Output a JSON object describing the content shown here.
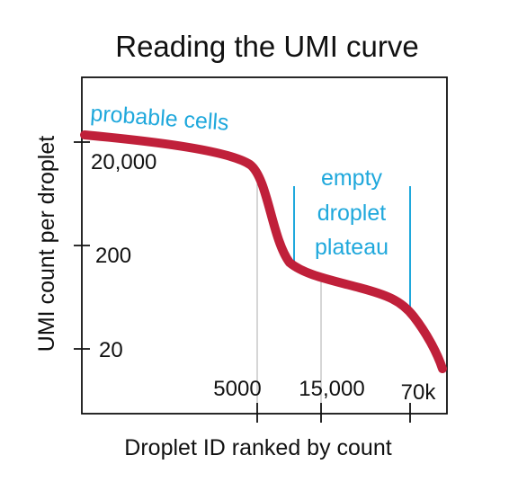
{
  "chart_data": {
    "type": "line",
    "title": "Reading the UMI curve",
    "xlabel": "Droplet ID ranked by count",
    "ylabel": "UMI count per droplet",
    "y_scale": "log",
    "x_ticks": [
      {
        "value": 5000,
        "label": "5000"
      },
      {
        "value": 15000,
        "label": "15,000"
      },
      {
        "value": 70000,
        "label": "70k"
      }
    ],
    "y_ticks": [
      {
        "value": 20,
        "label": "20"
      },
      {
        "value": 200,
        "label": "200"
      },
      {
        "value": 20000,
        "label": "20,000"
      }
    ],
    "series": [
      {
        "color": "#c0203a",
        "description_points": [
          {
            "x": 1,
            "y": 30000
          },
          {
            "x": 5000,
            "y": 15000
          },
          {
            "x": 8000,
            "y": 150
          },
          {
            "x": 15000,
            "y": 110
          },
          {
            "x": 40000,
            "y": 60
          },
          {
            "x": 70000,
            "y": 30
          },
          {
            "x": 100000,
            "y": 13
          }
        ]
      }
    ],
    "annotations": [
      {
        "text": "probable cells",
        "color": "#1fa8dc"
      },
      {
        "lines": [
          "empty",
          "droplet",
          "plateau"
        ],
        "color": "#1fa8dc"
      }
    ],
    "grid": false,
    "legend": "none"
  }
}
